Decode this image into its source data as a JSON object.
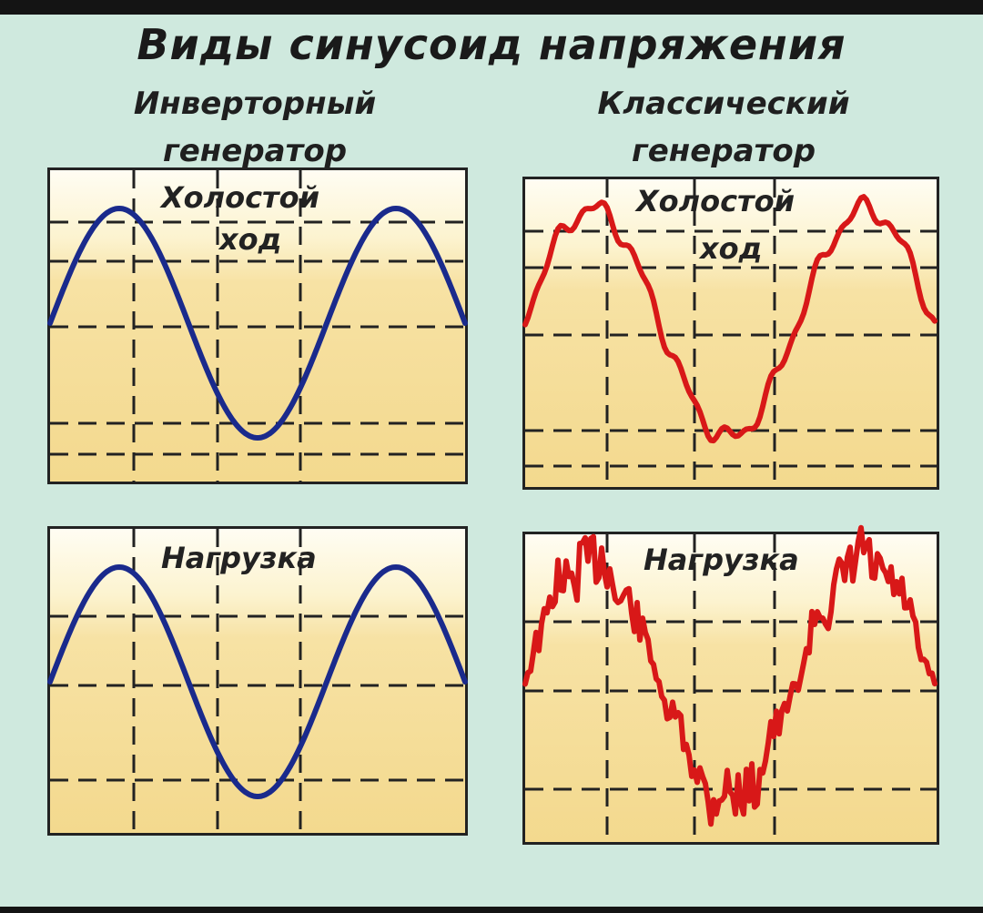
{
  "title": "Виды синусоид напряжения",
  "columns": {
    "inverter": "Инверторный генератор",
    "classic": "Классический генератор"
  },
  "panels": {
    "idle_label_line1": "Холостой",
    "idle_label_line2": "ход",
    "load_label": "Нагрузка"
  },
  "colors": {
    "background": "#cfe9de",
    "inverter_wave": "#1a2a8c",
    "classic_wave": "#d81818",
    "grid": "#222222"
  }
}
